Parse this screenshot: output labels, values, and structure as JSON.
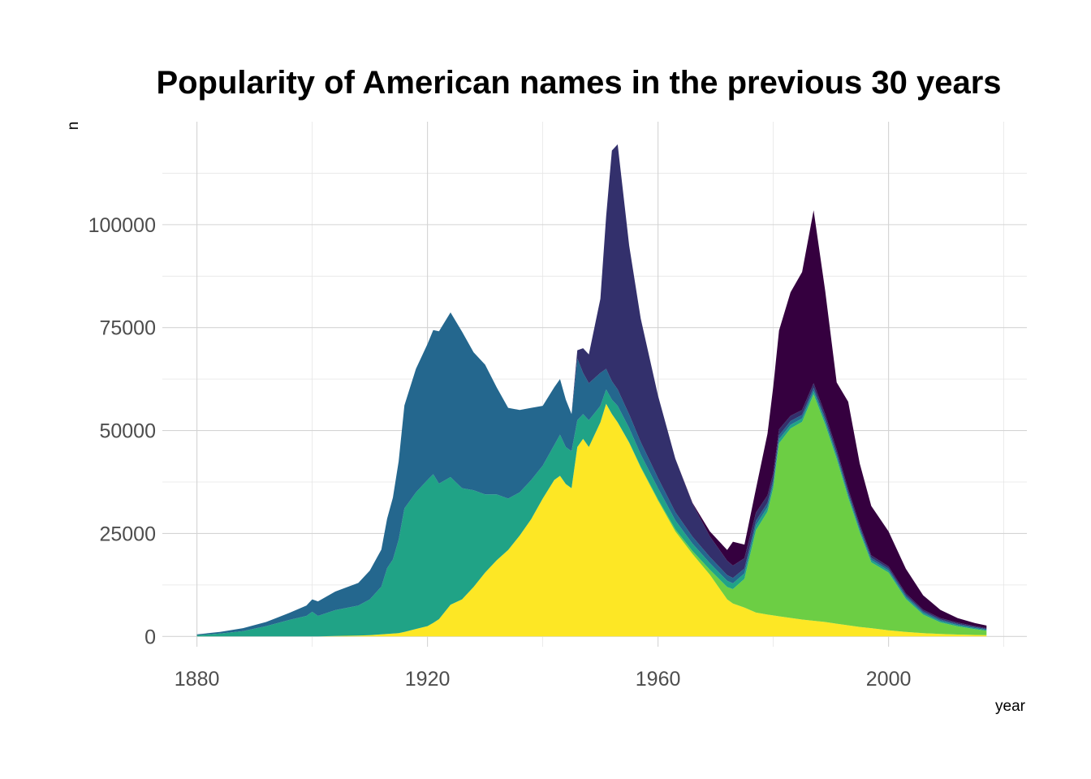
{
  "chart_data": {
    "type": "area",
    "stacked": true,
    "title": "Popularity of American names in the previous 30 years",
    "xlabel": "year",
    "ylabel": "n",
    "xlim": [
      1874,
      2024
    ],
    "ylim": [
      -2500,
      125000
    ],
    "x_ticks": [
      1880,
      1920,
      1960,
      2000
    ],
    "x_tick_labels": [
      "1880",
      "1920",
      "1960",
      "2000"
    ],
    "y_ticks": [
      0,
      25000,
      50000,
      75000,
      100000
    ],
    "y_tick_labels": [
      "0",
      "25000",
      "50000",
      "75000",
      "100000"
    ],
    "grid": true,
    "legend": "none",
    "x": [
      1880,
      1884,
      1888,
      1892,
      1896,
      1899,
      1900,
      1901,
      1904,
      1908,
      1910,
      1912,
      1913,
      1914,
      1915,
      1916,
      1918,
      1920,
      1921,
      1922,
      1924,
      1926,
      1928,
      1930,
      1932,
      1934,
      1936,
      1938,
      1940,
      1942,
      1943,
      1944,
      1945,
      1946,
      1947,
      1948,
      1950,
      1951,
      1952,
      1953,
      1955,
      1957,
      1960,
      1963,
      1966,
      1969,
      1972,
      1973,
      1975,
      1977,
      1979,
      1980,
      1981,
      1983,
      1985,
      1987,
      1989,
      1991,
      1993,
      1995,
      1997,
      2000,
      2003,
      2006,
      2009,
      2012,
      2015,
      2017
    ],
    "series": [
      {
        "color": "#FDE725",
        "values": [
          0,
          0,
          0,
          0,
          0,
          0,
          0,
          0,
          100,
          200,
          300,
          500,
          600,
          700,
          800,
          1100,
          1800,
          2500,
          3300,
          4200,
          7700,
          9000,
          12000,
          15500,
          18500,
          21000,
          24500,
          28500,
          33500,
          38000,
          39000,
          37000,
          36000,
          46000,
          48000,
          46000,
          52000,
          56500,
          54000,
          52000,
          47000,
          41000,
          33000,
          25500,
          20000,
          15000,
          9000,
          8000,
          7000,
          5800,
          5300,
          5100,
          4900,
          4500,
          4100,
          3800,
          3500,
          3100,
          2700,
          2300,
          2000,
          1500,
          1100,
          800,
          600,
          450,
          350,
          300
        ]
      },
      {
        "color": "#6CCE44",
        "values": [
          0,
          0,
          0,
          0,
          0,
          0,
          0,
          0,
          0,
          0,
          0,
          0,
          0,
          0,
          0,
          0,
          0,
          0,
          0,
          0,
          0,
          0,
          0,
          0,
          0,
          0,
          0,
          0,
          0,
          0,
          0,
          0,
          0,
          0,
          0,
          0,
          0,
          0,
          0,
          0,
          100,
          200,
          300,
          500,
          700,
          1200,
          3000,
          3500,
          7000,
          20000,
          25000,
          31000,
          42000,
          46000,
          48000,
          55000,
          48000,
          40000,
          31000,
          23000,
          16000,
          14000,
          8000,
          4500,
          2800,
          2000,
          1400,
          1100
        ]
      },
      {
        "color": "#20A386",
        "values": [
          300,
          700,
          1300,
          2500,
          4000,
          5000,
          6000,
          5000,
          6300,
          7300,
          8700,
          11600,
          16000,
          18000,
          22700,
          30000,
          33200,
          35500,
          36100,
          32900,
          31000,
          27000,
          23500,
          19000,
          16000,
          12500,
          10500,
          9500,
          8000,
          8500,
          10000,
          9000,
          9000,
          6500,
          6000,
          6500,
          4000,
          3500,
          3500,
          4000,
          3500,
          3000,
          2700,
          2200,
          1800,
          1600,
          1500,
          1400,
          1300,
          1200,
          1100,
          1000,
          950,
          900,
          850,
          800,
          750,
          700,
          650,
          600,
          550,
          500,
          450,
          400,
          350,
          300,
          250,
          200
        ]
      },
      {
        "color": "#24678E",
        "values": [
          200,
          400,
          700,
          1000,
          1700,
          2500,
          3000,
          3500,
          4500,
          5500,
          7000,
          9000,
          12000,
          15000,
          19000,
          25000,
          30000,
          33000,
          35000,
          37000,
          40000,
          38000,
          33500,
          31500,
          26000,
          22000,
          20000,
          17500,
          14500,
          14000,
          13500,
          11500,
          9000,
          15000,
          10000,
          9000,
          8000,
          5000,
          4500,
          4000,
          3300,
          3000,
          2500,
          2000,
          1700,
          1500,
          1400,
          1300,
          1200,
          1100,
          1050,
          1000,
          950,
          900,
          850,
          800,
          750,
          700,
          650,
          600,
          550,
          500,
          450,
          400,
          350,
          300,
          250,
          200
        ]
      },
      {
        "color": "#33306C",
        "values": [
          0,
          0,
          0,
          0,
          0,
          0,
          0,
          0,
          0,
          0,
          0,
          0,
          0,
          0,
          0,
          0,
          0,
          0,
          0,
          0,
          0,
          0,
          0,
          0,
          0,
          0,
          0,
          0,
          0,
          0,
          0,
          0,
          0,
          2000,
          6000,
          7000,
          18000,
          37000,
          56000,
          59500,
          41000,
          30000,
          20000,
          13000,
          8000,
          5000,
          3500,
          3000,
          2500,
          2000,
          1800,
          1600,
          1500,
          1300,
          1200,
          1100,
          1000,
          900,
          800,
          700,
          600,
          500,
          450,
          400,
          350,
          300,
          250,
          200
        ]
      },
      {
        "color": "#35003F",
        "values": [
          0,
          0,
          0,
          0,
          0,
          0,
          0,
          0,
          0,
          0,
          0,
          0,
          0,
          0,
          0,
          0,
          0,
          0,
          0,
          0,
          0,
          0,
          0,
          0,
          0,
          0,
          0,
          0,
          0,
          0,
          0,
          0,
          0,
          0,
          0,
          0,
          0,
          0,
          0,
          0,
          0,
          0,
          0,
          0,
          200,
          1200,
          2600,
          5800,
          3300,
          5800,
          15000,
          21000,
          24000,
          30000,
          33500,
          42000,
          30000,
          16300,
          21200,
          14800,
          12000,
          8500,
          6000,
          3500,
          2000,
          1100,
          750,
          650
        ]
      }
    ]
  }
}
